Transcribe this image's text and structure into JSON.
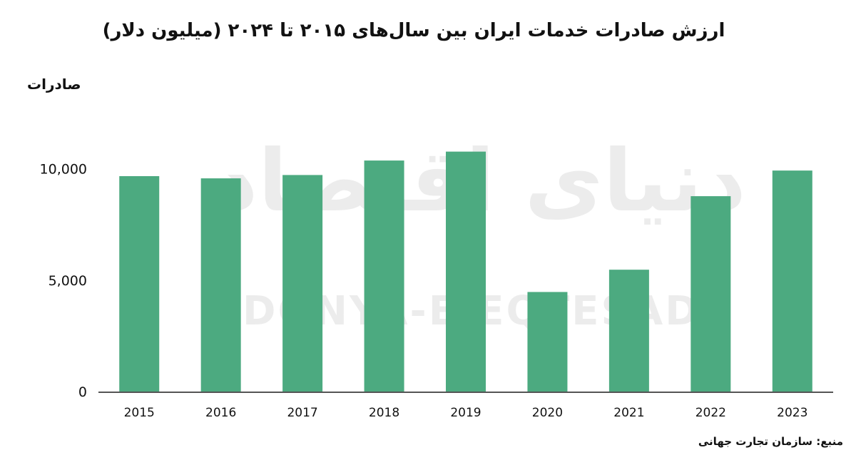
{
  "title": "ارزش صادرات خدمات ایران بین سال‌های ۲۰۱۵ تا ۲۰۲۴ (میلیون دلار)",
  "source": "منبع: سازمان تجارت جهانی",
  "watermark": {
    "latin": "DONYA-E-EQTESAD",
    "persian": "دنیای اقتصاد"
  },
  "colors": {
    "bar": "#4caa80",
    "axis": "#555555",
    "text": "#111111"
  },
  "chart_data": {
    "type": "bar",
    "categories": [
      "2015",
      "2016",
      "2017",
      "2018",
      "2019",
      "2020",
      "2021",
      "2022",
      "2023"
    ],
    "values": [
      9700,
      9600,
      9750,
      10400,
      10800,
      4500,
      5500,
      8800,
      9950
    ],
    "ylabel": "صادرات",
    "xlabel": "",
    "ylim": [
      0,
      14500
    ],
    "yticks": [
      0,
      5000,
      10000
    ],
    "ytick_labels": [
      "0",
      "5,000",
      "10,000"
    ],
    "grid": false,
    "legend": "none"
  }
}
